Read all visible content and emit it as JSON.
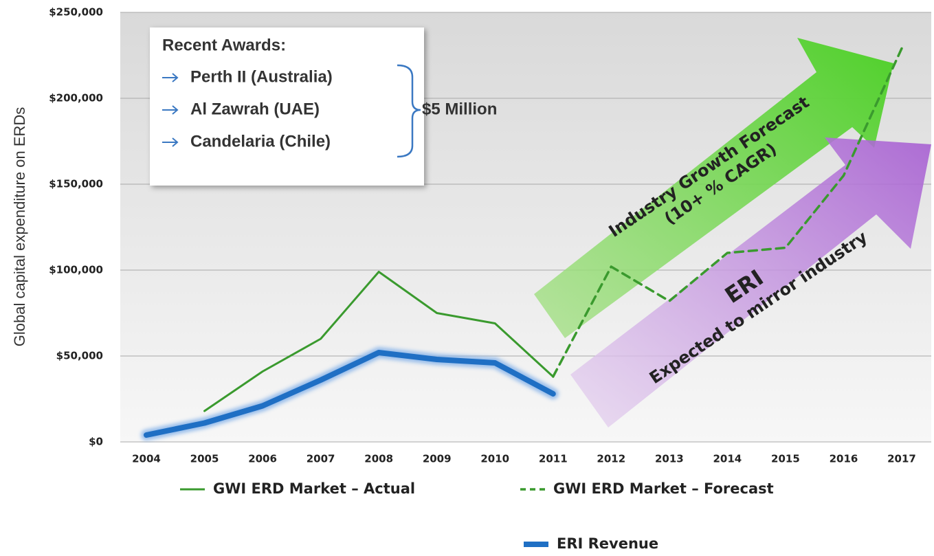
{
  "chart_data": {
    "type": "line",
    "y_label": "Global capital expenditure on ERDs",
    "categories": [
      "2004",
      "2005",
      "2006",
      "2007",
      "2008",
      "2009",
      "2010",
      "2011",
      "2012",
      "2013",
      "2014",
      "2015",
      "2016",
      "2017"
    ],
    "series": [
      {
        "name": "GWI ERD Market – Actual",
        "color": "#3a9a2e",
        "line_style": "solid",
        "values": [
          null,
          18000,
          41000,
          60000,
          99000,
          75000,
          69000,
          38000,
          null,
          null,
          null,
          null,
          null,
          null
        ]
      },
      {
        "name": "GWI ERD Market – Forecast",
        "color": "#3a9a2e",
        "line_style": "dashed",
        "values": [
          null,
          null,
          null,
          null,
          null,
          null,
          null,
          38000,
          102000,
          82000,
          110000,
          113000,
          155000,
          229000
        ]
      },
      {
        "name": "ERI Revenue",
        "color": "#1f6fc4",
        "line_style": "glow",
        "values": [
          4000,
          11000,
          21000,
          36000,
          52000,
          48000,
          46000,
          28000,
          null,
          null,
          null,
          null,
          null,
          null
        ]
      }
    ],
    "ylim": [
      0,
      250000
    ],
    "yticks": [
      {
        "value": 0,
        "label": "$0"
      },
      {
        "value": 50000,
        "label": "$50,000"
      },
      {
        "value": 100000,
        "label": "$100,000"
      },
      {
        "value": 150000,
        "label": "$150,000"
      },
      {
        "value": 200000,
        "label": "$200,000"
      },
      {
        "value": 250000,
        "label": "$250,000"
      }
    ],
    "grid": true,
    "annotations": {
      "awards_title": "Recent Awards:",
      "awards": [
        "Perth II (Australia)",
        "Al Zawrah (UAE)",
        "Candelaria (Chile)"
      ],
      "awards_total": "$5 Million",
      "industry_arrow": [
        "Industry Growth Forecast",
        "(10+ % CAGR)"
      ],
      "eri_arrow": [
        "ERI",
        "Expected to mirror industry"
      ]
    }
  }
}
